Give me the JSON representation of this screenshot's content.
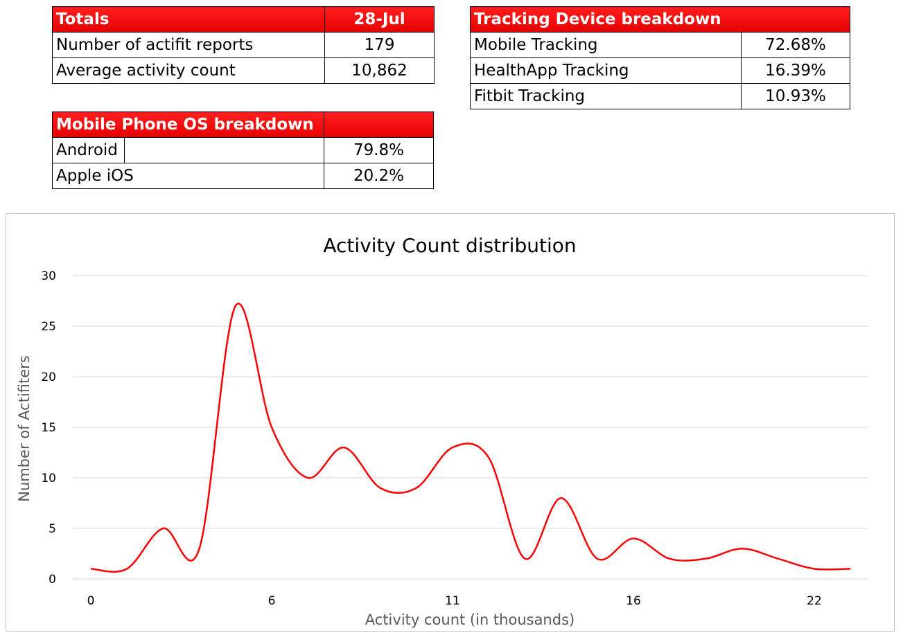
{
  "totals": {
    "header": "Totals",
    "date": "28-Jul",
    "rows": [
      {
        "label": "Number of actifit reports",
        "value": "179"
      },
      {
        "label": "Average activity count",
        "value": "10,862"
      }
    ]
  },
  "tracking": {
    "header": "Tracking Device breakdown",
    "rows": [
      {
        "label": "Mobile Tracking",
        "value": "72.68%"
      },
      {
        "label": "HealthApp Tracking",
        "value": "16.39%"
      },
      {
        "label": "Fitbit Tracking",
        "value": "10.93%"
      }
    ]
  },
  "os": {
    "header": "Mobile Phone OS breakdown",
    "rows": [
      {
        "label": "Android",
        "value": "79.8%"
      },
      {
        "label": "Apple iOS",
        "value": "20.2%"
      }
    ]
  },
  "colors": {
    "header_red": "#ff0000",
    "line": "#ff0000",
    "grid": "#d9d9d9"
  },
  "chart_data": {
    "type": "line",
    "title": "Activity Count distribution",
    "xlabel": "Activity count (in thousands)",
    "ylabel": "Number of Actifiters",
    "ylim": [
      0,
      30
    ],
    "yticks": [
      0,
      5,
      10,
      15,
      20,
      25,
      30
    ],
    "xtick_labels": [
      {
        "label": "0",
        "x": 0
      },
      {
        "label": "6",
        "x": 5
      },
      {
        "label": "11",
        "x": 10
      },
      {
        "label": "16",
        "x": 15
      },
      {
        "label": "22",
        "x": 20
      }
    ],
    "grid": true,
    "smooth": true,
    "series": [
      {
        "x": [
          0,
          1,
          2,
          3,
          4,
          5,
          6,
          7,
          8,
          9,
          10,
          11,
          12,
          13,
          14,
          15,
          16,
          17,
          18,
          19,
          20,
          21
        ],
        "values": [
          1,
          1,
          5,
          3,
          27,
          15,
          10,
          13,
          9,
          9,
          13,
          12,
          2,
          8,
          2,
          4,
          2,
          2,
          3,
          2,
          1,
          1
        ]
      }
    ]
  }
}
